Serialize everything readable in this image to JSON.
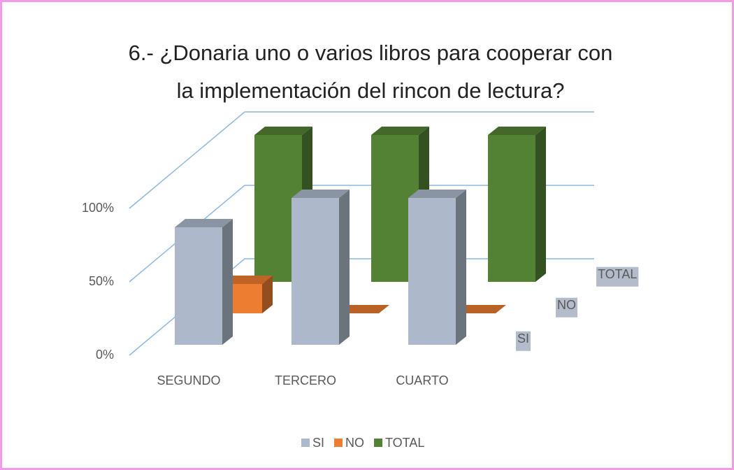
{
  "chart_data": {
    "type": "bar3d",
    "title": "6.- ¿Donaria uno o varios libros para cooperar con la implementación del rincon de lectura?",
    "categories": [
      "SEGUNDO",
      "TERCERO",
      "CUARTO"
    ],
    "series": [
      {
        "name": "SI",
        "color": "#adb9ca",
        "values": [
          80,
          100,
          100
        ]
      },
      {
        "name": "NO",
        "color": "#ed7d31",
        "values": [
          20,
          0,
          0
        ]
      },
      {
        "name": "TOTAL",
        "color": "#548235",
        "values": [
          100,
          100,
          100
        ]
      }
    ],
    "ylim": [
      0,
      100
    ],
    "yticks": [
      {
        "value": 0,
        "label": "0%"
      },
      {
        "value": 50,
        "label": "50%"
      },
      {
        "value": 100,
        "label": "100%"
      }
    ],
    "grid": true,
    "legend": "bottom"
  }
}
